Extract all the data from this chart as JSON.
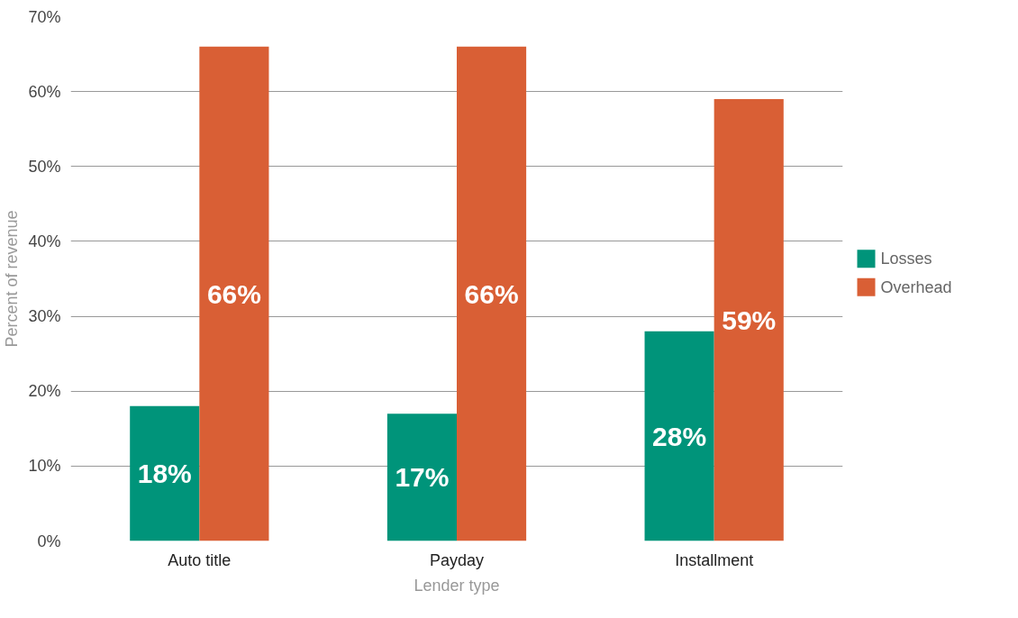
{
  "chart_data": {
    "type": "bar",
    "xlabel": "Lender type",
    "ylabel": "Percent of revenue",
    "categories": [
      "Auto title",
      "Payday",
      "Installment"
    ],
    "series": [
      {
        "name": "Losses",
        "color": "#00947a",
        "values": [
          18,
          17,
          28
        ],
        "value_labels": [
          "18%",
          "17%",
          "28%"
        ]
      },
      {
        "name": "Overhead",
        "color": "#d95f35",
        "values": [
          66,
          66,
          59
        ],
        "value_labels": [
          "66%",
          "66%",
          "59%"
        ]
      }
    ],
    "ylim": [
      0,
      70
    ],
    "yticks": [
      {
        "value": 0,
        "label": "0%"
      },
      {
        "value": 10,
        "label": "10%"
      },
      {
        "value": 20,
        "label": "20%"
      },
      {
        "value": 30,
        "label": "30%"
      },
      {
        "value": 40,
        "label": "40%"
      },
      {
        "value": 50,
        "label": "50%"
      },
      {
        "value": 60,
        "label": "60%"
      },
      {
        "value": 70,
        "label": "70%"
      }
    ],
    "grid": "y",
    "legend": "right"
  }
}
